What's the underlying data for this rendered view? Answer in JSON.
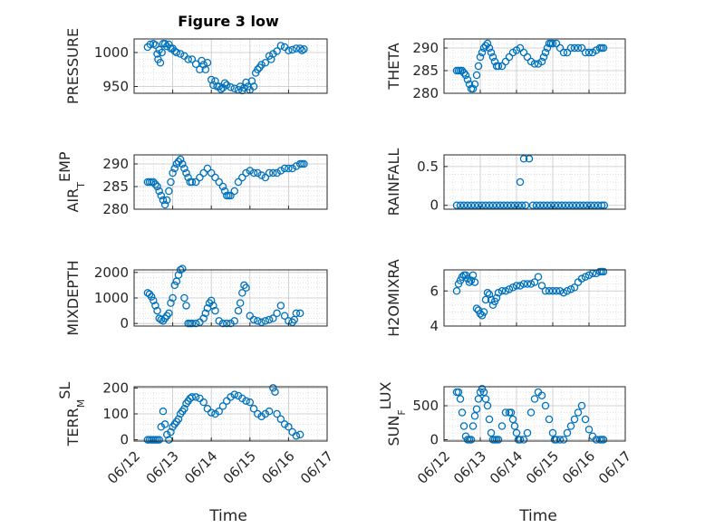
{
  "figure": {
    "title": "Figure 3 low",
    "marker_color": "#0072bd",
    "grid_color": "#d9d9d9",
    "axis_color": "#262626",
    "xtick_labels": [
      "06/12",
      "06/13",
      "06/14",
      "06/15",
      "06/16",
      "06/17"
    ],
    "xlabel": "Time"
  },
  "chart_data": [
    {
      "type": "scatter",
      "ylabel": "PRESSURE",
      "ylabel_sub": "",
      "ylabel_tail": "",
      "xlim": [
        0,
        5
      ],
      "ylim": [
        940,
        1020
      ],
      "yticks": [
        950,
        1000
      ],
      "ytick_labels": [
        "950",
        "1000"
      ],
      "x": [
        0.35,
        0.42,
        0.5,
        0.55,
        0.6,
        0.62,
        0.65,
        0.68,
        0.72,
        0.75,
        0.8,
        0.85,
        0.9,
        0.95,
        1.0,
        1.05,
        1.1,
        1.2,
        1.3,
        1.4,
        1.5,
        1.6,
        1.7,
        1.75,
        1.8,
        1.85,
        1.9,
        2.0,
        2.05,
        2.1,
        2.15,
        2.2,
        2.25,
        2.3,
        2.35,
        2.4,
        2.5,
        2.6,
        2.7,
        2.75,
        2.8,
        2.85,
        2.9,
        2.95,
        3.0,
        3.05,
        3.1,
        3.15,
        3.2,
        3.25,
        3.3,
        3.4,
        3.5,
        3.55,
        3.6,
        3.7,
        3.8,
        3.9,
        4.0,
        4.1,
        4.2,
        4.3,
        4.35,
        4.4
      ],
      "values": [
        1008,
        1012,
        1013,
        1011,
        998,
        990,
        1004,
        985,
        1000,
        1013,
        1013,
        1009,
        1012,
        1006,
        1006,
        1002,
        1000,
        998,
        995,
        990,
        990,
        983,
        975,
        988,
        982,
        975,
        985,
        960,
        952,
        958,
        950,
        950,
        946,
        948,
        955,
        952,
        949,
        947,
        945,
        950,
        944,
        948,
        956,
        950,
        945,
        958,
        950,
        970,
        975,
        978,
        982,
        985,
        995,
        990,
        998,
        1002,
        1010,
        1008,
        1003,
        1004,
        1006,
        1006,
        1003,
        1005
      ]
    },
    {
      "type": "scatter",
      "ylabel": "THETA",
      "ylabel_sub": "",
      "ylabel_tail": "",
      "xlim": [
        0,
        5
      ],
      "ylim": [
        280,
        292
      ],
      "yticks": [
        280,
        285,
        290
      ],
      "ytick_labels": [
        "280",
        "285",
        "290"
      ],
      "x": [
        0.35,
        0.4,
        0.45,
        0.5,
        0.55,
        0.6,
        0.65,
        0.7,
        0.75,
        0.8,
        0.85,
        0.9,
        0.95,
        1.0,
        1.05,
        1.1,
        1.15,
        1.2,
        1.25,
        1.3,
        1.35,
        1.4,
        1.45,
        1.5,
        1.6,
        1.7,
        1.8,
        1.9,
        2.0,
        2.1,
        2.2,
        2.3,
        2.4,
        2.5,
        2.6,
        2.7,
        2.75,
        2.8,
        2.85,
        2.9,
        2.95,
        3.0,
        3.1,
        3.2,
        3.3,
        3.4,
        3.5,
        3.6,
        3.7,
        3.8,
        3.9,
        4.0,
        4.1,
        4.2,
        4.3,
        4.35,
        4.4
      ],
      "values": [
        285,
        285,
        285,
        285,
        284.5,
        284,
        283,
        282,
        281,
        281,
        282,
        284,
        286,
        288,
        289,
        290,
        290.5,
        291,
        290,
        289,
        288,
        287,
        286,
        286,
        286,
        287,
        288,
        289,
        289.5,
        290,
        289,
        288,
        287,
        286.5,
        286.5,
        287,
        288,
        289,
        290,
        291,
        291,
        291,
        291,
        290,
        289,
        289,
        290,
        290,
        290,
        290,
        289,
        289,
        289,
        289.5,
        290,
        290,
        290
      ]
    },
    {
      "type": "scatter",
      "ylabel": "AIR",
      "ylabel_sub": "T",
      "ylabel_tail": "EMP",
      "xlim": [
        0,
        5
      ],
      "ylim": [
        280,
        292
      ],
      "yticks": [
        280,
        285,
        290
      ],
      "ytick_labels": [
        "280",
        "285",
        "290"
      ],
      "x": [
        0.35,
        0.4,
        0.45,
        0.5,
        0.55,
        0.6,
        0.65,
        0.7,
        0.75,
        0.8,
        0.85,
        0.9,
        0.95,
        1.0,
        1.05,
        1.1,
        1.15,
        1.2,
        1.25,
        1.3,
        1.35,
        1.4,
        1.45,
        1.5,
        1.6,
        1.7,
        1.8,
        1.9,
        2.0,
        2.1,
        2.2,
        2.3,
        2.35,
        2.4,
        2.45,
        2.5,
        2.6,
        2.7,
        2.8,
        2.9,
        3.0,
        3.1,
        3.2,
        3.3,
        3.4,
        3.5,
        3.6,
        3.7,
        3.8,
        3.9,
        4.0,
        4.1,
        4.2,
        4.3,
        4.35,
        4.4
      ],
      "values": [
        286,
        286,
        286,
        286,
        285.5,
        285,
        284,
        283,
        282,
        281,
        282,
        284,
        286,
        288,
        289,
        290,
        290.5,
        291,
        290,
        289,
        288,
        287,
        286,
        286,
        286,
        287,
        288,
        289,
        288,
        287,
        286,
        285,
        284,
        283,
        283,
        283,
        284,
        286,
        287,
        288,
        288.5,
        288,
        288,
        287.5,
        287,
        288,
        288,
        288,
        288.5,
        289,
        289,
        289,
        289.5,
        290,
        290,
        290
      ]
    },
    {
      "type": "scatter",
      "ylabel": "RAINFALL",
      "ylabel_sub": "",
      "ylabel_tail": "",
      "xlim": [
        0,
        5
      ],
      "ylim": [
        -0.05,
        0.65
      ],
      "yticks": [
        0,
        0.5
      ],
      "ytick_labels": [
        "0",
        "0.5"
      ],
      "x": [
        0.35,
        0.45,
        0.55,
        0.65,
        0.75,
        0.85,
        0.95,
        1.05,
        1.15,
        1.25,
        1.35,
        1.45,
        1.55,
        1.65,
        1.75,
        1.85,
        1.95,
        2.05,
        2.1,
        2.15,
        2.2,
        2.25,
        2.35,
        2.45,
        2.55,
        2.65,
        2.75,
        2.85,
        2.95,
        3.05,
        3.15,
        3.25,
        3.35,
        3.45,
        3.55,
        3.65,
        3.75,
        3.85,
        3.95,
        4.05,
        4.15,
        4.25,
        4.35,
        4.42
      ],
      "values": [
        0,
        0,
        0,
        0,
        0,
        0,
        0,
        0,
        0,
        0,
        0,
        0,
        0,
        0,
        0,
        0,
        0,
        0,
        0.3,
        0,
        0.6,
        0,
        0.6,
        0,
        0,
        0,
        0,
        0,
        0,
        0,
        0,
        0,
        0,
        0,
        0,
        0,
        0,
        0,
        0,
        0,
        0,
        0,
        0,
        0
      ]
    },
    {
      "type": "scatter",
      "ylabel": "MIXDEPTH",
      "ylabel_sub": "",
      "ylabel_tail": "",
      "xlim": [
        0,
        5
      ],
      "ylim": [
        -100,
        2100
      ],
      "yticks": [
        0,
        1000,
        2000
      ],
      "ytick_labels": [
        "0",
        "1000",
        "2000"
      ],
      "x": [
        0.35,
        0.4,
        0.45,
        0.5,
        0.55,
        0.6,
        0.65,
        0.7,
        0.75,
        0.8,
        0.85,
        0.9,
        0.95,
        1.0,
        1.05,
        1.1,
        1.15,
        1.2,
        1.25,
        1.3,
        1.35,
        1.4,
        1.45,
        1.5,
        1.6,
        1.7,
        1.8,
        1.85,
        1.9,
        1.95,
        2.0,
        2.05,
        2.1,
        2.2,
        2.3,
        2.4,
        2.5,
        2.6,
        2.7,
        2.75,
        2.8,
        2.85,
        2.9,
        3.0,
        3.1,
        3.2,
        3.3,
        3.4,
        3.5,
        3.6,
        3.7,
        3.8,
        3.9,
        4.0,
        4.1,
        4.15,
        4.2,
        4.3
      ],
      "values": [
        1200,
        1150,
        1050,
        900,
        700,
        500,
        200,
        150,
        100,
        200,
        300,
        400,
        800,
        1000,
        1500,
        1650,
        1900,
        2100,
        2150,
        1000,
        700,
        0,
        0,
        0,
        0,
        50,
        200,
        400,
        600,
        800,
        900,
        700,
        500,
        100,
        0,
        0,
        0,
        100,
        500,
        800,
        1200,
        1500,
        1400,
        300,
        150,
        100,
        50,
        100,
        150,
        200,
        400,
        700,
        300,
        100,
        50,
        150,
        400,
        400
      ]
    },
    {
      "type": "scatter",
      "ylabel": "H2OMIXRA",
      "ylabel_sub": "",
      "ylabel_tail": "",
      "xlim": [
        0,
        5
      ],
      "ylim": [
        4,
        7.2
      ],
      "yticks": [
        4,
        6
      ],
      "ytick_labels": [
        "4",
        "6"
      ],
      "x": [
        0.35,
        0.4,
        0.45,
        0.5,
        0.55,
        0.6,
        0.65,
        0.7,
        0.75,
        0.8,
        0.85,
        0.9,
        0.95,
        1.0,
        1.05,
        1.1,
        1.15,
        1.2,
        1.25,
        1.3,
        1.35,
        1.4,
        1.45,
        1.5,
        1.6,
        1.7,
        1.8,
        1.9,
        2.0,
        2.1,
        2.2,
        2.3,
        2.4,
        2.5,
        2.6,
        2.7,
        2.8,
        2.9,
        3.0,
        3.1,
        3.2,
        3.3,
        3.4,
        3.5,
        3.6,
        3.7,
        3.8,
        3.9,
        4.0,
        4.1,
        4.2,
        4.3,
        4.35,
        4.4
      ],
      "values": [
        6.0,
        6.4,
        6.6,
        6.8,
        6.9,
        6.9,
        6.7,
        6.5,
        6.6,
        6.9,
        6.5,
        5.0,
        4.9,
        4.7,
        4.6,
        4.8,
        5.5,
        5.9,
        5.8,
        5.5,
        5.2,
        5.4,
        5.6,
        5.9,
        6.0,
        6.0,
        6.1,
        6.2,
        6.3,
        6.3,
        6.4,
        6.4,
        6.4,
        6.5,
        6.8,
        6.3,
        6.0,
        6.0,
        6.0,
        6.0,
        6.0,
        5.9,
        6.0,
        6.1,
        6.2,
        6.5,
        6.7,
        6.8,
        6.9,
        7.0,
        7.0,
        7.1,
        7.1,
        7.1
      ]
    },
    {
      "type": "scatter",
      "ylabel": "TERR",
      "ylabel_sub": "M",
      "ylabel_tail": "SL",
      "xlim": [
        0,
        5
      ],
      "ylim": [
        -5,
        205
      ],
      "yticks": [
        0,
        100,
        200
      ],
      "ytick_labels": [
        "0",
        "100",
        "200"
      ],
      "x": [
        0.35,
        0.4,
        0.45,
        0.5,
        0.55,
        0.6,
        0.65,
        0.7,
        0.75,
        0.8,
        0.85,
        0.9,
        0.95,
        1.0,
        1.05,
        1.1,
        1.15,
        1.2,
        1.25,
        1.3,
        1.35,
        1.4,
        1.45,
        1.5,
        1.6,
        1.7,
        1.8,
        1.9,
        2.0,
        2.1,
        2.2,
        2.3,
        2.4,
        2.5,
        2.6,
        2.7,
        2.8,
        2.9,
        3.0,
        3.1,
        3.2,
        3.3,
        3.4,
        3.5,
        3.6,
        3.65,
        3.7,
        3.8,
        3.9,
        4.0,
        4.1,
        4.2,
        4.3
      ],
      "values": [
        0,
        0,
        0,
        0,
        0,
        0,
        0,
        50,
        110,
        60,
        20,
        0,
        30,
        50,
        60,
        70,
        80,
        100,
        110,
        120,
        140,
        150,
        160,
        165,
        165,
        160,
        145,
        120,
        105,
        100,
        110,
        130,
        150,
        165,
        175,
        170,
        160,
        150,
        145,
        120,
        100,
        90,
        100,
        110,
        200,
        185,
        100,
        80,
        60,
        50,
        30,
        15,
        20
      ]
    },
    {
      "type": "scatter",
      "ylabel": "SUN",
      "ylabel_sub": "F",
      "ylabel_tail": "LUX",
      "xlim": [
        0,
        5
      ],
      "ylim": [
        -20,
        780
      ],
      "yticks": [
        0,
        500
      ],
      "ytick_labels": [
        "0",
        "500"
      ],
      "x": [
        0.35,
        0.4,
        0.45,
        0.5,
        0.55,
        0.6,
        0.65,
        0.7,
        0.75,
        0.8,
        0.85,
        0.9,
        0.95,
        1.0,
        1.05,
        1.1,
        1.15,
        1.2,
        1.25,
        1.3,
        1.35,
        1.4,
        1.45,
        1.5,
        1.6,
        1.7,
        1.8,
        1.85,
        1.9,
        1.95,
        2.0,
        2.05,
        2.1,
        2.2,
        2.3,
        2.4,
        2.5,
        2.6,
        2.7,
        2.8,
        2.9,
        3.0,
        3.05,
        3.1,
        3.2,
        3.3,
        3.4,
        3.5,
        3.6,
        3.7,
        3.8,
        3.9,
        4.0,
        4.1,
        4.2,
        4.3,
        4.35,
        4.4
      ],
      "values": [
        700,
        700,
        600,
        400,
        200,
        50,
        0,
        0,
        0,
        200,
        350,
        450,
        600,
        700,
        750,
        700,
        600,
        500,
        300,
        100,
        0,
        0,
        0,
        0,
        200,
        400,
        400,
        400,
        300,
        200,
        100,
        0,
        0,
        0,
        100,
        400,
        600,
        700,
        650,
        500,
        300,
        100,
        0,
        0,
        0,
        0,
        100,
        200,
        300,
        400,
        500,
        300,
        150,
        50,
        0,
        0,
        0,
        0
      ]
    }
  ]
}
